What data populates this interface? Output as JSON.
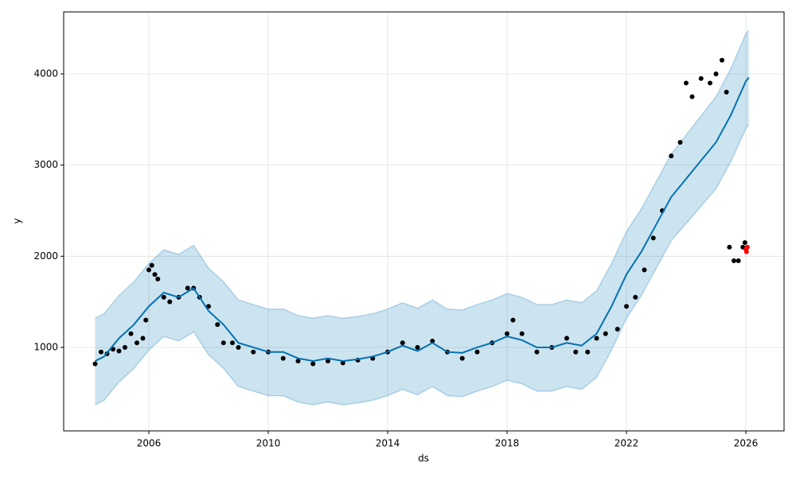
{
  "chart_data": {
    "type": "line",
    "xlabel": "ds",
    "ylabel": "y",
    "xlim": [
      2003.147,
      2027.28
    ],
    "ylim": [
      84,
      4680
    ],
    "xticks": [
      2006,
      2010,
      2014,
      2018,
      2022,
      2026
    ],
    "yticks": [
      1000,
      2000,
      3000,
      4000
    ],
    "grid": true,
    "forecast": {
      "color": "#0072B2",
      "band_color": "#0072B2",
      "x": [
        2004.2,
        2004.5,
        2005.0,
        2005.5,
        2006.0,
        2006.5,
        2007.0,
        2007.5,
        2008.0,
        2008.5,
        2009.0,
        2009.5,
        2010.0,
        2010.5,
        2011.0,
        2011.5,
        2012.0,
        2012.5,
        2013.0,
        2013.5,
        2014.0,
        2014.5,
        2015.0,
        2015.5,
        2016.0,
        2016.5,
        2017.0,
        2017.5,
        2018.0,
        2018.5,
        2019.0,
        2019.5,
        2020.0,
        2020.5,
        2021.0,
        2021.5,
        2022.0,
        2022.5,
        2023.0,
        2023.5,
        2024.0,
        2024.5,
        2025.0,
        2025.5,
        2026.0,
        2026.1
      ],
      "values": [
        850,
        900,
        1100,
        1250,
        1450,
        1600,
        1550,
        1650,
        1400,
        1250,
        1050,
        1000,
        950,
        950,
        880,
        850,
        880,
        850,
        870,
        900,
        950,
        1020,
        960,
        1050,
        950,
        940,
        1000,
        1050,
        1120,
        1080,
        1000,
        1000,
        1050,
        1020,
        1150,
        1450,
        1800,
        2050,
        2350,
        2650,
        2850,
        3050,
        3250,
        3550,
        3920,
        3960
      ],
      "upper": [
        1320,
        1370,
        1570,
        1720,
        1920,
        2070,
        2020,
        2120,
        1870,
        1720,
        1520,
        1470,
        1420,
        1420,
        1350,
        1320,
        1350,
        1320,
        1340,
        1370,
        1420,
        1490,
        1430,
        1520,
        1420,
        1410,
        1470,
        1520,
        1590,
        1550,
        1470,
        1470,
        1520,
        1490,
        1620,
        1920,
        2270,
        2520,
        2820,
        3120,
        3330,
        3540,
        3750,
        4060,
        4440,
        4480
      ],
      "lower": [
        370,
        420,
        620,
        770,
        970,
        1120,
        1070,
        1170,
        920,
        770,
        570,
        520,
        470,
        470,
        400,
        370,
        400,
        370,
        390,
        420,
        470,
        540,
        480,
        570,
        470,
        460,
        520,
        570,
        640,
        600,
        520,
        520,
        570,
        540,
        670,
        970,
        1320,
        1570,
        1870,
        2170,
        2360,
        2550,
        2740,
        3040,
        3400,
        3440
      ]
    },
    "observed": {
      "color": "#000000",
      "x": [
        2004.2,
        2004.4,
        2004.6,
        2004.8,
        2005.0,
        2005.2,
        2005.4,
        2005.6,
        2005.8,
        2005.9,
        2006.0,
        2006.1,
        2006.2,
        2006.3,
        2006.5,
        2006.7,
        2007.0,
        2007.3,
        2007.5,
        2007.7,
        2008.0,
        2008.3,
        2008.5,
        2008.8,
        2009.0,
        2009.5,
        2010.0,
        2010.5,
        2011.0,
        2011.5,
        2012.0,
        2012.5,
        2013.0,
        2013.5,
        2014.0,
        2014.5,
        2015.0,
        2015.5,
        2016.0,
        2016.5,
        2017.0,
        2017.5,
        2018.0,
        2018.2,
        2018.5,
        2019.0,
        2019.5,
        2020.0,
        2020.3,
        2020.7,
        2021.0,
        2021.3,
        2021.7,
        2022.0,
        2022.3,
        2022.6,
        2022.9,
        2023.2,
        2023.5,
        2023.8,
        2024.0,
        2024.2,
        2024.5,
        2024.8,
        2025.0,
        2025.2,
        2025.35,
        2025.45,
        2025.6,
        2025.75,
        2025.9,
        2025.97
      ],
      "values": [
        820,
        950,
        930,
        980,
        960,
        1000,
        1150,
        1050,
        1100,
        1300,
        1850,
        1900,
        1800,
        1750,
        1550,
        1500,
        1550,
        1650,
        1650,
        1550,
        1450,
        1250,
        1050,
        1050,
        1000,
        950,
        950,
        880,
        850,
        820,
        850,
        830,
        860,
        880,
        950,
        1050,
        1000,
        1070,
        950,
        880,
        950,
        1050,
        1150,
        1300,
        1150,
        950,
        1000,
        1100,
        950,
        950,
        1100,
        1150,
        1200,
        1450,
        1550,
        1850,
        2200,
        2500,
        3100,
        3250,
        3900,
        3750,
        3950,
        3900,
        4000,
        4150,
        3800,
        2100,
        1950,
        1950,
        2100,
        2150
      ]
    },
    "holdout": {
      "color": "#ff0000",
      "x": [
        2026.0,
        2026.02,
        2026.05
      ],
      "values": [
        2080,
        2050,
        2100
      ]
    }
  }
}
